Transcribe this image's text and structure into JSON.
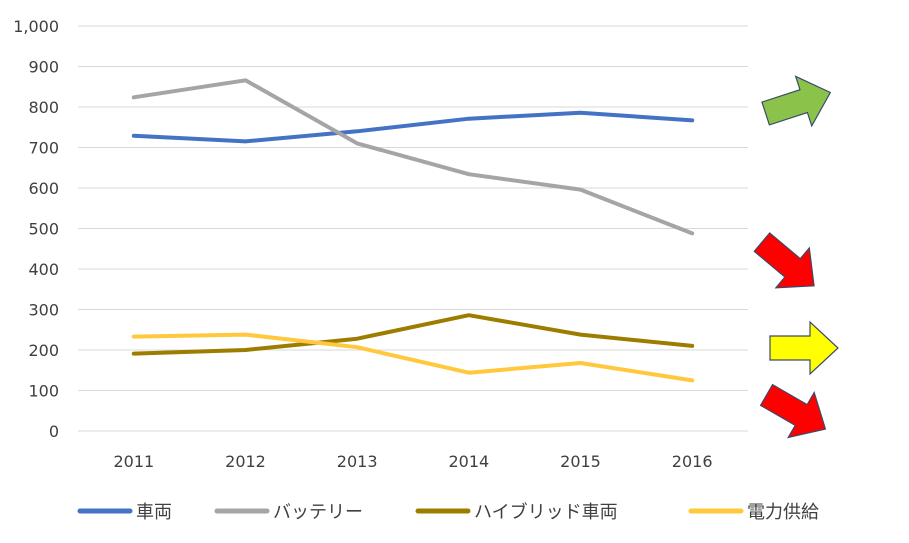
{
  "chart_data": {
    "type": "line",
    "categories": [
      "2011",
      "2012",
      "2013",
      "2014",
      "2015",
      "2016"
    ],
    "ylim": [
      0,
      1000
    ],
    "yticks": [
      0,
      100,
      200,
      300,
      400,
      500,
      600,
      700,
      800,
      900,
      1000
    ],
    "ytick_labels": [
      "0",
      "100",
      "200",
      "300",
      "400",
      "500",
      "600",
      "700",
      "800",
      "900",
      "1,000"
    ],
    "grid": true,
    "legend_position": "bottom",
    "series": [
      {
        "name": "車両",
        "color": "#4472C4",
        "values": [
          729,
          715,
          740,
          771,
          786,
          767
        ]
      },
      {
        "name": "バッテリー",
        "color": "#A5A5A5",
        "values": [
          824,
          866,
          710,
          634,
          596,
          488
        ]
      },
      {
        "name": "ハイブリッド車両",
        "color": "#9C7D00",
        "values": [
          191,
          200,
          228,
          286,
          238,
          210
        ]
      },
      {
        "name": "電力供給",
        "color": "#FFC83D",
        "values": [
          233,
          238,
          207,
          144,
          168,
          125
        ]
      }
    ],
    "trend_arrows": [
      {
        "series": "車両",
        "direction": "up",
        "color": "#8BC34A"
      },
      {
        "series": "バッテリー",
        "direction": "down",
        "color": "#FF0000"
      },
      {
        "series": "ハイブリッド車両",
        "direction": "flat",
        "color": "#FFFF00"
      },
      {
        "series": "電力供給",
        "direction": "down",
        "color": "#FF0000"
      }
    ]
  }
}
